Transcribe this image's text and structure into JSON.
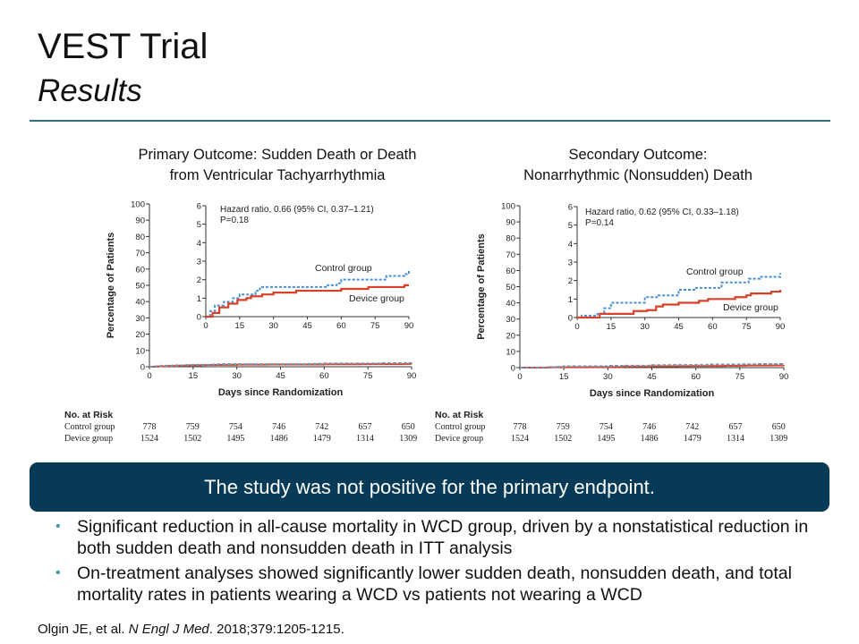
{
  "slide": {
    "title": "VEST Trial",
    "subtitle": "Results",
    "banner": "The study was not positive for the primary endpoint.",
    "bullets": [
      "Significant reduction in all-cause mortality in WCD group, driven by a nonstatistical reduction in both sudden death and nonsudden death in ITT analysis",
      "On-treatment analyses showed significantly lower sudden death, nonsudden death, and total mortality rates in patients wearing a WCD vs patients not wearing a WCD"
    ],
    "citation": {
      "authors": "Olgin JE, et al. ",
      "journal": "N Engl J Med",
      "rest": ". 2018;379:1205-1215."
    },
    "colors": {
      "banner": "#073a56",
      "rule": "#2f6f7e",
      "bullet": "#4a95a8",
      "control": "#4a8fd0",
      "device": "#d9402a"
    }
  },
  "chart_data": [
    {
      "type": "line",
      "title_lines": [
        "Primary Outcome: Sudden Death or Death",
        "from Ventricular Tachyarrhythmia"
      ],
      "xlabel": "Days since Randomization",
      "ylabel": "Percentage of Patients",
      "xlim": [
        0,
        90
      ],
      "ylim": [
        0,
        100
      ],
      "xticks": [
        0,
        15,
        30,
        45,
        60,
        75,
        90
      ],
      "yticks": [
        0,
        10,
        20,
        30,
        40,
        50,
        60,
        70,
        80,
        90,
        100
      ],
      "inset": {
        "xlim": [
          0,
          90
        ],
        "ylim": [
          0,
          6
        ],
        "xticks": [
          0,
          15,
          30,
          45,
          60,
          75,
          90
        ],
        "yticks": [
          0,
          1,
          2,
          3,
          4,
          5,
          6
        ]
      },
      "annotation": [
        "Hazard ratio, 0.66 (95% CI, 0.37–1.21)",
        "P=0.18"
      ],
      "series": [
        {
          "name": "Control group",
          "style": "dashed",
          "color": "#4a8fd0",
          "x": [
            0,
            2,
            4,
            8,
            12,
            15,
            20,
            22,
            24,
            50,
            54,
            58,
            60,
            78,
            80,
            88,
            90
          ],
          "y": [
            0,
            0.3,
            0.6,
            0.8,
            1.0,
            1.2,
            1.2,
            1.4,
            1.6,
            1.6,
            1.7,
            1.8,
            2.0,
            2.0,
            2.2,
            2.3,
            2.5
          ]
        },
        {
          "name": "Device group",
          "style": "solid",
          "color": "#d9402a",
          "x": [
            0,
            3,
            6,
            10,
            14,
            18,
            20,
            25,
            30,
            40,
            58,
            60,
            72,
            88,
            90
          ],
          "y": [
            0,
            0.2,
            0.5,
            0.7,
            0.9,
            1.0,
            1.1,
            1.2,
            1.3,
            1.4,
            1.4,
            1.5,
            1.6,
            1.7,
            1.7
          ]
        }
      ],
      "risk_table": {
        "header": "No. at Risk",
        "rows": [
          {
            "label": "Control group",
            "values": [
              "778",
              "759",
              "754",
              "746",
              "742",
              "657",
              "650"
            ]
          },
          {
            "label": "Device group",
            "values": [
              "1524",
              "1502",
              "1495",
              "1486",
              "1479",
              "1314",
              "1309"
            ]
          }
        ]
      }
    },
    {
      "type": "line",
      "title_lines": [
        "Secondary Outcome:",
        "Nonarrhythmic (Nonsudden) Death"
      ],
      "xlabel": "Days since Randomization",
      "ylabel": "Percentage of Patients",
      "xlim": [
        0,
        90
      ],
      "ylim": [
        0,
        100
      ],
      "xticks": [
        0,
        15,
        30,
        45,
        60,
        75,
        90
      ],
      "yticks": [
        0,
        10,
        20,
        30,
        40,
        50,
        60,
        70,
        80,
        90,
        100
      ],
      "inset": {
        "xlim": [
          0,
          90
        ],
        "ylim": [
          0,
          6
        ],
        "xticks": [
          0,
          15,
          30,
          45,
          60,
          75,
          90
        ],
        "yticks": [
          0,
          1,
          2,
          3,
          4,
          5,
          6
        ]
      },
      "annotation": [
        "Hazard ratio, 0.62 (95% CI, 0.33–1.18)",
        "P=0.14"
      ],
      "series": [
        {
          "name": "Control group",
          "style": "dashed",
          "color": "#4a8fd0",
          "x": [
            0,
            2,
            9,
            12,
            15,
            27,
            30,
            36,
            44,
            45,
            52,
            62,
            64,
            73,
            76,
            81,
            88,
            90
          ],
          "y": [
            0,
            0.1,
            0.2,
            0.5,
            0.8,
            0.8,
            1.1,
            1.2,
            1.2,
            1.5,
            1.6,
            1.6,
            1.9,
            1.9,
            2.1,
            2.2,
            2.2,
            2.4
          ]
        },
        {
          "name": "Device group",
          "style": "solid",
          "color": "#d9402a",
          "x": [
            0,
            8,
            10,
            22,
            25,
            31,
            35,
            38,
            45,
            50,
            54,
            58,
            66,
            70,
            75,
            77,
            86,
            90
          ],
          "y": [
            0,
            0,
            0.2,
            0.2,
            0.35,
            0.4,
            0.6,
            0.7,
            0.8,
            0.8,
            0.9,
            1.0,
            1.0,
            1.1,
            1.2,
            1.3,
            1.4,
            1.5
          ]
        }
      ],
      "risk_table": {
        "header": "No. at Risk",
        "rows": [
          {
            "label": "Control group",
            "values": [
              "778",
              "759",
              "754",
              "746",
              "742",
              "657",
              "650"
            ]
          },
          {
            "label": "Device group",
            "values": [
              "1524",
              "1502",
              "1495",
              "1486",
              "1479",
              "1314",
              "1309"
            ]
          }
        ]
      }
    }
  ]
}
